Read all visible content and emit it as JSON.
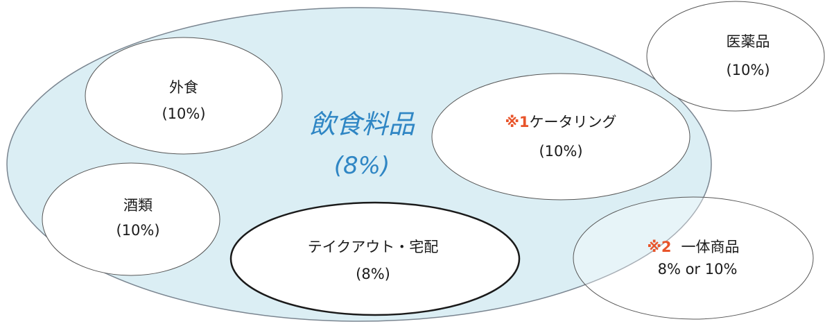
{
  "colors": {
    "main_fill": "#dbeef4",
    "main_stroke": "#7a8590",
    "accent": "#2f86c4",
    "note": "#e8542a"
  },
  "main": {
    "title": "飲食料品",
    "rate": "(8%)"
  },
  "items": {
    "gaishoku": {
      "name": "外食",
      "rate": "(10%)"
    },
    "iyakuhin": {
      "name": "医薬品",
      "rate": "(10%)"
    },
    "catering": {
      "note": "※1",
      "name": "ケータリング",
      "rate": "(10%)"
    },
    "shurui": {
      "name": "酒類",
      "rate": "(10%)"
    },
    "takeout": {
      "name": "テイクアウト・宅配",
      "rate": "(8%)"
    },
    "ittai": {
      "note": "※2",
      "name": "一体商品",
      "rate": "8% or 10%"
    }
  }
}
